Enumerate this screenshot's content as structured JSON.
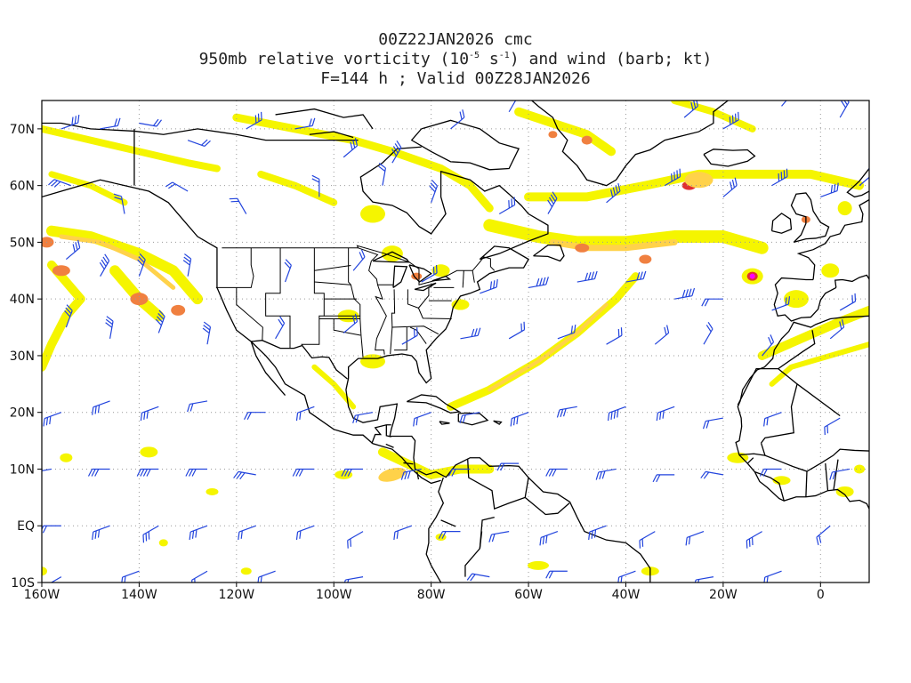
{
  "title": {
    "line1": "00Z22JAN2026 cmc",
    "line2_pre": "950mb relative vorticity (10",
    "line2_exp1": "-5",
    "line2_mid": " s",
    "line2_exp2": "-1",
    "line2_post": ") and wind (barb; kt)",
    "line3": "F=144 h ; Valid 00Z28JAN2026"
  },
  "map": {
    "projection": "latlon",
    "lon_range": [
      -160,
      10
    ],
    "lat_range": [
      -10,
      75
    ],
    "graticule": "dotted",
    "colors": {
      "vort_low": "#f5f500",
      "vort_mid": "#ffd24a",
      "vort_high": "#f08040",
      "vort_peak": "#e03030",
      "vort_max": "#ff00ff",
      "barb": "#2244dd",
      "coast": "#000000"
    }
  },
  "axes": {
    "y_ticks": [
      {
        "label": "70N",
        "lat": 70
      },
      {
        "label": "60N",
        "lat": 60
      },
      {
        "label": "50N",
        "lat": 50
      },
      {
        "label": "40N",
        "lat": 40
      },
      {
        "label": "30N",
        "lat": 30
      },
      {
        "label": "20N",
        "lat": 20
      },
      {
        "label": "10N",
        "lat": 10
      },
      {
        "label": "EQ",
        "lat": 0
      },
      {
        "label": "10S",
        "lat": -10
      }
    ],
    "x_ticks": [
      {
        "label": "160W",
        "lon": -160
      },
      {
        "label": "140W",
        "lon": -140
      },
      {
        "label": "120W",
        "lon": -120
      },
      {
        "label": "100W",
        "lon": -100
      },
      {
        "label": "80W",
        "lon": -80
      },
      {
        "label": "60W",
        "lon": -60
      },
      {
        "label": "40W",
        "lon": -40
      },
      {
        "label": "20W",
        "lon": -20
      },
      {
        "label": "0",
        "lon": 0
      }
    ]
  }
}
